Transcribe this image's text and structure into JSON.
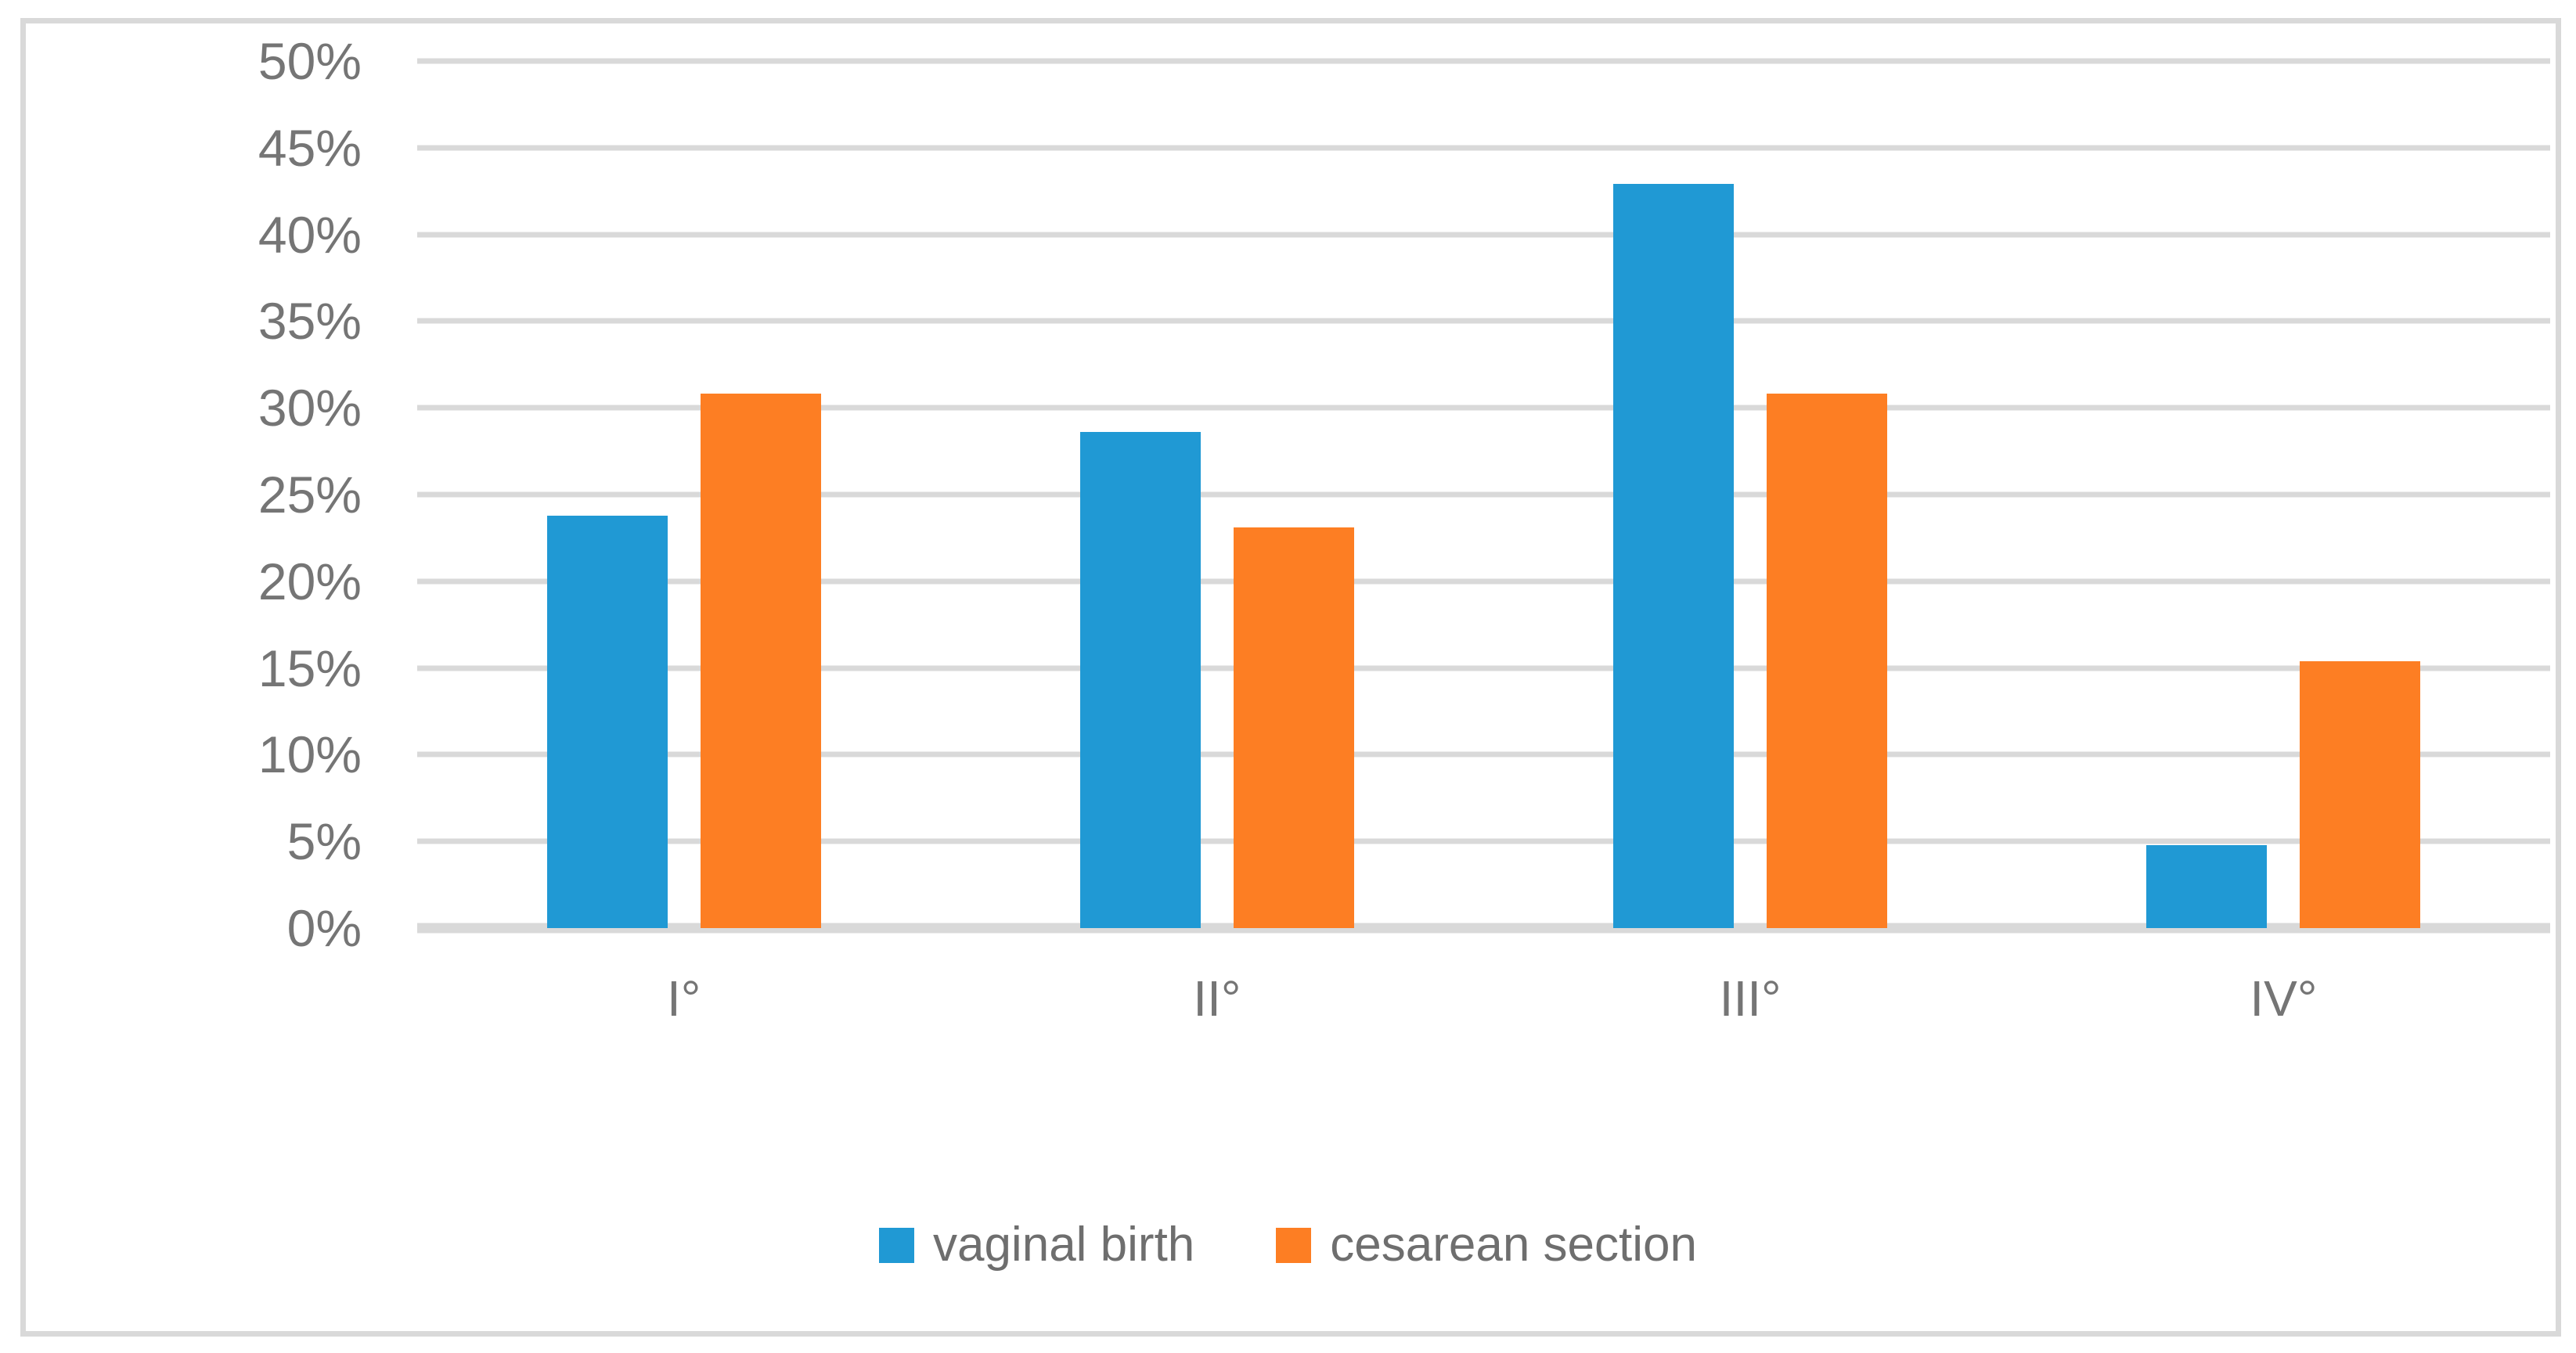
{
  "chart_data": {
    "type": "bar",
    "title": "",
    "categories": [
      "I°",
      "II°",
      "III°",
      "IV°"
    ],
    "series": [
      {
        "name": "vaginal birth",
        "color": "#2099D4",
        "values": [
          23.8,
          28.6,
          42.9,
          4.8
        ]
      },
      {
        "name": "cesarean section",
        "color": "#FD7E23",
        "values": [
          30.8,
          23.1,
          30.8,
          15.4
        ]
      }
    ],
    "y_axis": {
      "min": 0,
      "max": 50,
      "step": 5,
      "tick_labels": [
        "0%",
        "5%",
        "10%",
        "15%",
        "20%",
        "25%",
        "30%",
        "35%",
        "40%",
        "45%",
        "50%"
      ]
    },
    "x_axis": {
      "tick_labels": [
        "I°",
        "II°",
        "III°",
        "IV°"
      ]
    },
    "grid": true,
    "legend_position": "bottom",
    "colors": {
      "gridline": "#D9D9D9",
      "axis_baseline": "#D9D9D9",
      "frame_border": "#D9D9D9",
      "tick_text": "#757575",
      "legend_text": "#6E6E6E",
      "background": "#FFFFFF"
    }
  }
}
